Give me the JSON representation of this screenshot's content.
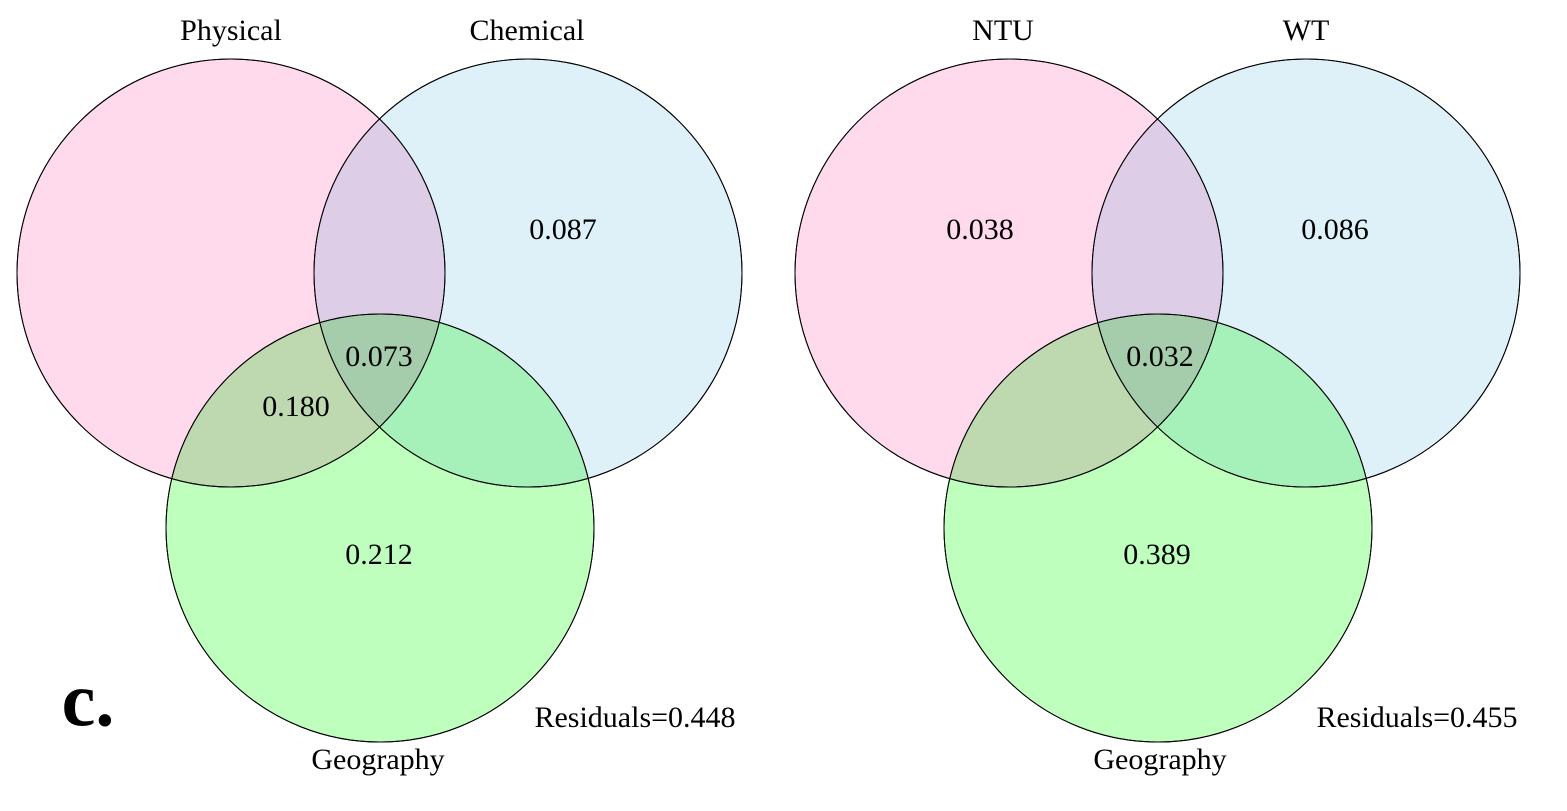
{
  "panel_label": "c.",
  "diagrams": [
    {
      "sets": [
        "Physical",
        "Chemical",
        "Geography"
      ],
      "regions": {
        "chemical_only": "0.087",
        "all_three": "0.073",
        "physical_geography": "0.180",
        "geography_only": "0.212"
      },
      "residuals": "Residuals=0.448"
    },
    {
      "sets": [
        "NTU",
        "WT",
        "Geography"
      ],
      "regions": {
        "ntu_only": "0.038",
        "wt_only": "0.086",
        "all_three": "0.032",
        "geography_only": "0.389"
      },
      "residuals": "Residuals=0.455"
    }
  ]
}
